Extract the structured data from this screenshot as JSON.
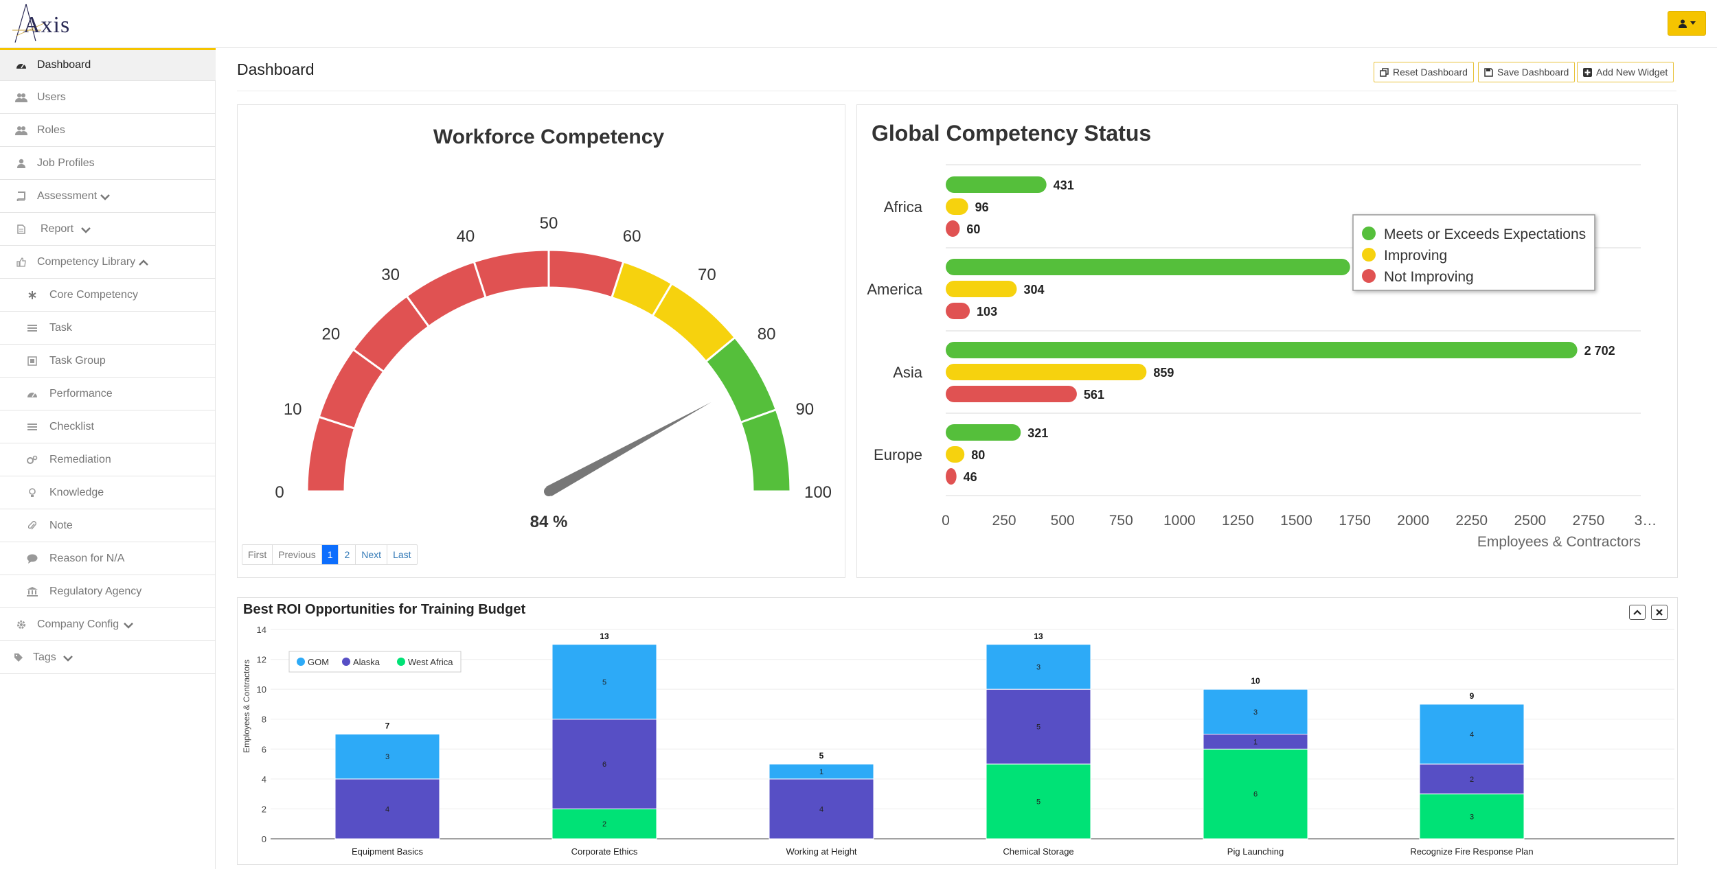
{
  "app": {
    "logo_text": "Axis"
  },
  "sidebar": {
    "items": [
      {
        "label": "Dashboard",
        "icon": "tachometer-icon"
      },
      {
        "label": "Users",
        "icon": "users-icon"
      },
      {
        "label": "Roles",
        "icon": "users-icon"
      },
      {
        "label": "Job Profiles",
        "icon": "user-icon"
      },
      {
        "label": "Assessment",
        "icon": "book-icon"
      },
      {
        "label": "Report",
        "icon": "file-icon"
      },
      {
        "label": "Competency Library",
        "icon": "thumbs-up-icon"
      },
      {
        "label": "Core Competency",
        "icon": "asterisk-icon"
      },
      {
        "label": "Task",
        "icon": "list-icon"
      },
      {
        "label": "Task Group",
        "icon": "group-icon"
      },
      {
        "label": "Performance",
        "icon": "tachometer-icon"
      },
      {
        "label": "Checklist",
        "icon": "list-icon"
      },
      {
        "label": "Remediation",
        "icon": "cogs-icon"
      },
      {
        "label": "Knowledge",
        "icon": "lightbulb-icon"
      },
      {
        "label": "Note",
        "icon": "paperclip-icon"
      },
      {
        "label": "Reason for N/A",
        "icon": "comment-icon"
      },
      {
        "label": "Regulatory Agency",
        "icon": "bank-icon"
      },
      {
        "label": "Company Config",
        "icon": "gear-icon"
      },
      {
        "label": "Tags",
        "icon": "tag-icon"
      }
    ]
  },
  "header": {
    "title": "Dashboard",
    "buttons": {
      "reset": "Reset Dashboard",
      "save": "Save Dashboard",
      "add": "Add New Widget"
    }
  },
  "gauge": {
    "title": "Workforce Competency",
    "value": 84,
    "value_label": "84 %",
    "ticks": [
      "0",
      "10",
      "20",
      "30",
      "40",
      "50",
      "60",
      "70",
      "80",
      "90",
      "100"
    ],
    "bands": [
      {
        "from": 0,
        "to": 60,
        "color": "#e05252"
      },
      {
        "from": 60,
        "to": 78,
        "color": "#f6d20e"
      },
      {
        "from": 78,
        "to": 100,
        "color": "#55bf3b"
      }
    ],
    "pager": {
      "first": "First",
      "previous": "Previous",
      "page1": "1",
      "page2": "2",
      "next": "Next",
      "last": "Last"
    }
  },
  "global": {
    "title": "Global Competency Status",
    "legend": [
      "Meets or Exceeds Expectations",
      "Improving",
      "Not Improving"
    ],
    "colors": [
      "#55bf3b",
      "#f6d20e",
      "#e05252"
    ],
    "chart_data": {
      "type": "bar",
      "orientation": "horizontal",
      "categories": [
        "Africa",
        "America",
        "Asia",
        "Europe"
      ],
      "series": [
        {
          "name": "Meets or Exceeds Expectations",
          "values": [
            431,
            1730,
            2702,
            321
          ],
          "labels": [
            "431",
            "",
            "2 702",
            "321"
          ]
        },
        {
          "name": "Improving",
          "values": [
            96,
            304,
            859,
            80
          ],
          "labels": [
            "96",
            "304",
            "859",
            "80"
          ]
        },
        {
          "name": "Not Improving",
          "values": [
            60,
            103,
            561,
            46
          ],
          "labels": [
            "60",
            "103",
            "561",
            "46"
          ]
        }
      ],
      "xticks": [
        "0",
        "250",
        "500",
        "750",
        "1000",
        "1250",
        "1500",
        "1750",
        "2000",
        "2250",
        "2500",
        "2750",
        "3…"
      ],
      "xlim": [
        0,
        3000
      ],
      "xlabel": "Employees & Contractors",
      "legend_position": "top-right"
    }
  },
  "roi": {
    "title": "Best ROI Opportunities for Training Budget",
    "legend": [
      "GOM",
      "Alaska",
      "West Africa"
    ],
    "colors": [
      "#2daaf7",
      "#574fc5",
      "#00e276"
    ],
    "chart_data": {
      "type": "bar",
      "stacked": true,
      "categories": [
        "Equipment Basics",
        "Corporate Ethics",
        "Working at Height",
        "Chemical Storage",
        "Pig Launching",
        "Recognize Fire Response Plan"
      ],
      "series": [
        {
          "name": "GOM",
          "values": [
            3,
            5,
            1,
            3,
            3,
            4
          ]
        },
        {
          "name": "Alaska",
          "values": [
            4,
            6,
            4,
            5,
            1,
            2
          ]
        },
        {
          "name": "West Africa",
          "values": [
            0,
            2,
            0,
            5,
            6,
            3
          ]
        }
      ],
      "totals": [
        7,
        13,
        5,
        13,
        10,
        9
      ],
      "yticks": [
        "0",
        "2",
        "4",
        "6",
        "8",
        "10",
        "12",
        "14"
      ],
      "ylim": [
        0,
        14
      ],
      "ylabel": "Employees & Contractors",
      "legend_position": "top-left"
    }
  }
}
